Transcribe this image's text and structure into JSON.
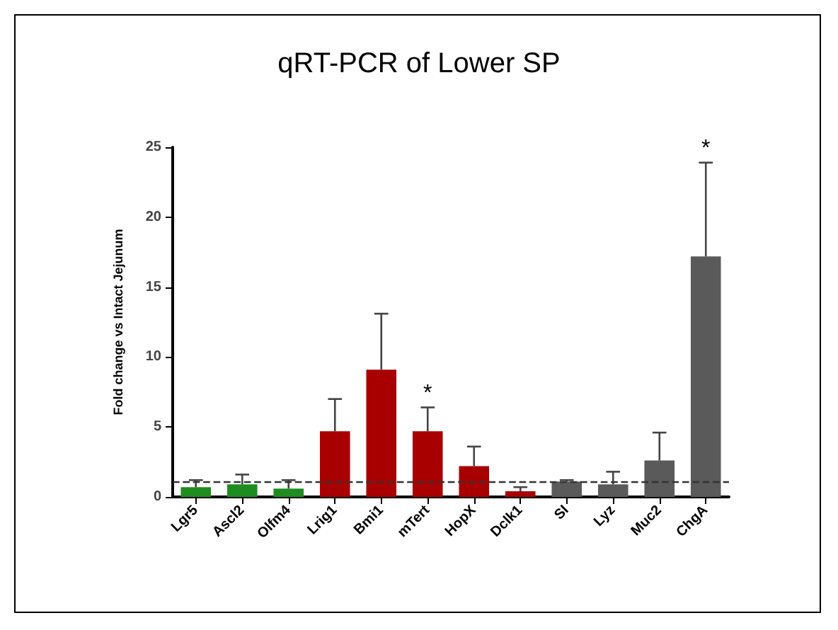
{
  "chart_data": {
    "type": "bar",
    "title": "qRT-PCR of Lower SP",
    "ylabel": "Fold change vs Intact Jejunum",
    "categories": [
      "Lgr5",
      "Ascl2",
      "Olfm4",
      "Lrig1",
      "Bmi1",
      "mTert",
      "HopX",
      "Dclk1",
      "SI",
      "Lyz",
      "Muc2",
      "ChgA"
    ],
    "values": [
      0.7,
      0.9,
      0.6,
      4.7,
      9.1,
      4.7,
      2.2,
      0.4,
      1.1,
      0.9,
      2.6,
      17.2
    ],
    "colors": [
      "#1e8c1e",
      "#1e8c1e",
      "#1e8c1e",
      "#a80000",
      "#a80000",
      "#a80000",
      "#a80000",
      "#a80000",
      "#5a5a5a",
      "#5a5a5a",
      "#5a5a5a",
      "#5a5a5a"
    ],
    "errors": [
      [
        0.7,
        1.2
      ],
      [
        0.9,
        1.6
      ],
      [
        0.6,
        1.2
      ],
      [
        4.7,
        7.0
      ],
      [
        9.1,
        13.1
      ],
      [
        4.7,
        6.4
      ],
      [
        2.2,
        3.6
      ],
      [
        0.4,
        0.7
      ],
      [
        1.1,
        1.2
      ],
      [
        0.9,
        1.8
      ],
      [
        2.6,
        4.6
      ],
      [
        17.2,
        23.9
      ]
    ],
    "ylim": [
      0,
      25
    ],
    "yticks": [
      0,
      5,
      10,
      15,
      20,
      25
    ],
    "grid": false,
    "ref_lines": [
      {
        "axis": "y",
        "value": 1.1,
        "color": "#333333",
        "line_style": "dashed"
      }
    ],
    "annotations": [
      {
        "text": "*",
        "x": "mTert",
        "y": 6.4
      },
      {
        "text": "*",
        "x": "ChgA",
        "y": 23.9
      }
    ]
  }
}
